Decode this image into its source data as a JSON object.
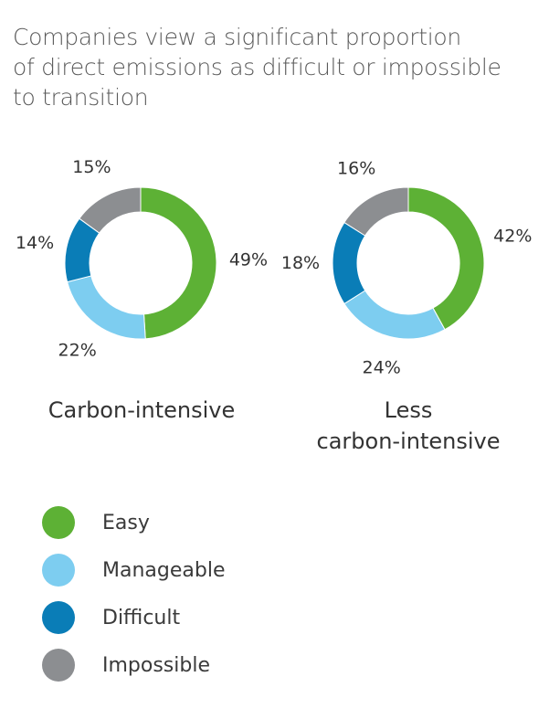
{
  "title": "Companies view a significant proportion\nof direct emissions as difficult or impossible\nto transition",
  "colors": {
    "Easy": "#5db135",
    "Manageable": "#7dcdf0",
    "Difficult": "#0a7db7",
    "Impossible": "#8c8e91"
  },
  "chart_data": [
    {
      "type": "pie",
      "name": "Carbon-intensive",
      "categories": [
        "Easy",
        "Manageable",
        "Difficult",
        "Impossible"
      ],
      "values": [
        49,
        22,
        14,
        15
      ],
      "labels": [
        "49%",
        "22%",
        "14%",
        "15%"
      ]
    },
    {
      "type": "pie",
      "name": "Less carbon-intensive",
      "categories": [
        "Easy",
        "Manageable",
        "Difficult",
        "Impossible"
      ],
      "values": [
        42,
        24,
        18,
        16
      ],
      "labels": [
        "42%",
        "24%",
        "18%",
        "16%"
      ]
    }
  ],
  "chart_names": [
    "Carbon-intensive",
    "Less\ncarbon-intensive"
  ],
  "legend": [
    "Easy",
    "Manageable",
    "Difficult",
    "Impossible"
  ]
}
